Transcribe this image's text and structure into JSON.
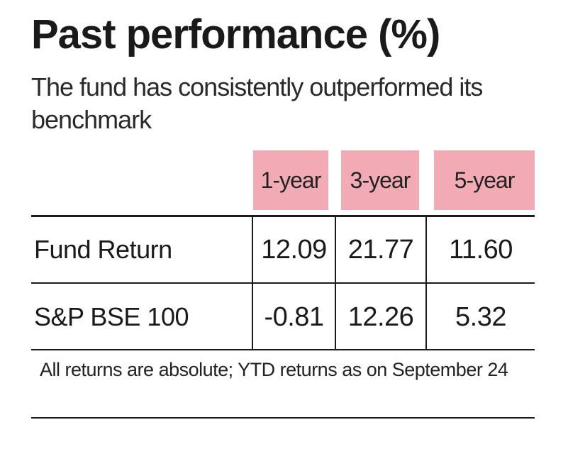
{
  "chart_data": {
    "type": "table",
    "title": "Past performance (%)",
    "subtitle": "The fund has consistently outperformed its benchmark",
    "columns": [
      "1-year",
      "3-year",
      "5-year"
    ],
    "rows": [
      {
        "label": "Fund Return",
        "values": [
          "12.09",
          "21.77",
          "11.60"
        ]
      },
      {
        "label": "S&P BSE 100",
        "values": [
          "-0.81",
          "12.26",
          "5.32"
        ]
      }
    ],
    "footnote": "All returns are absolute; YTD returns as on September 24"
  },
  "colors": {
    "header_bg": "#f2aab4",
    "rule": "#1a1a1a"
  }
}
